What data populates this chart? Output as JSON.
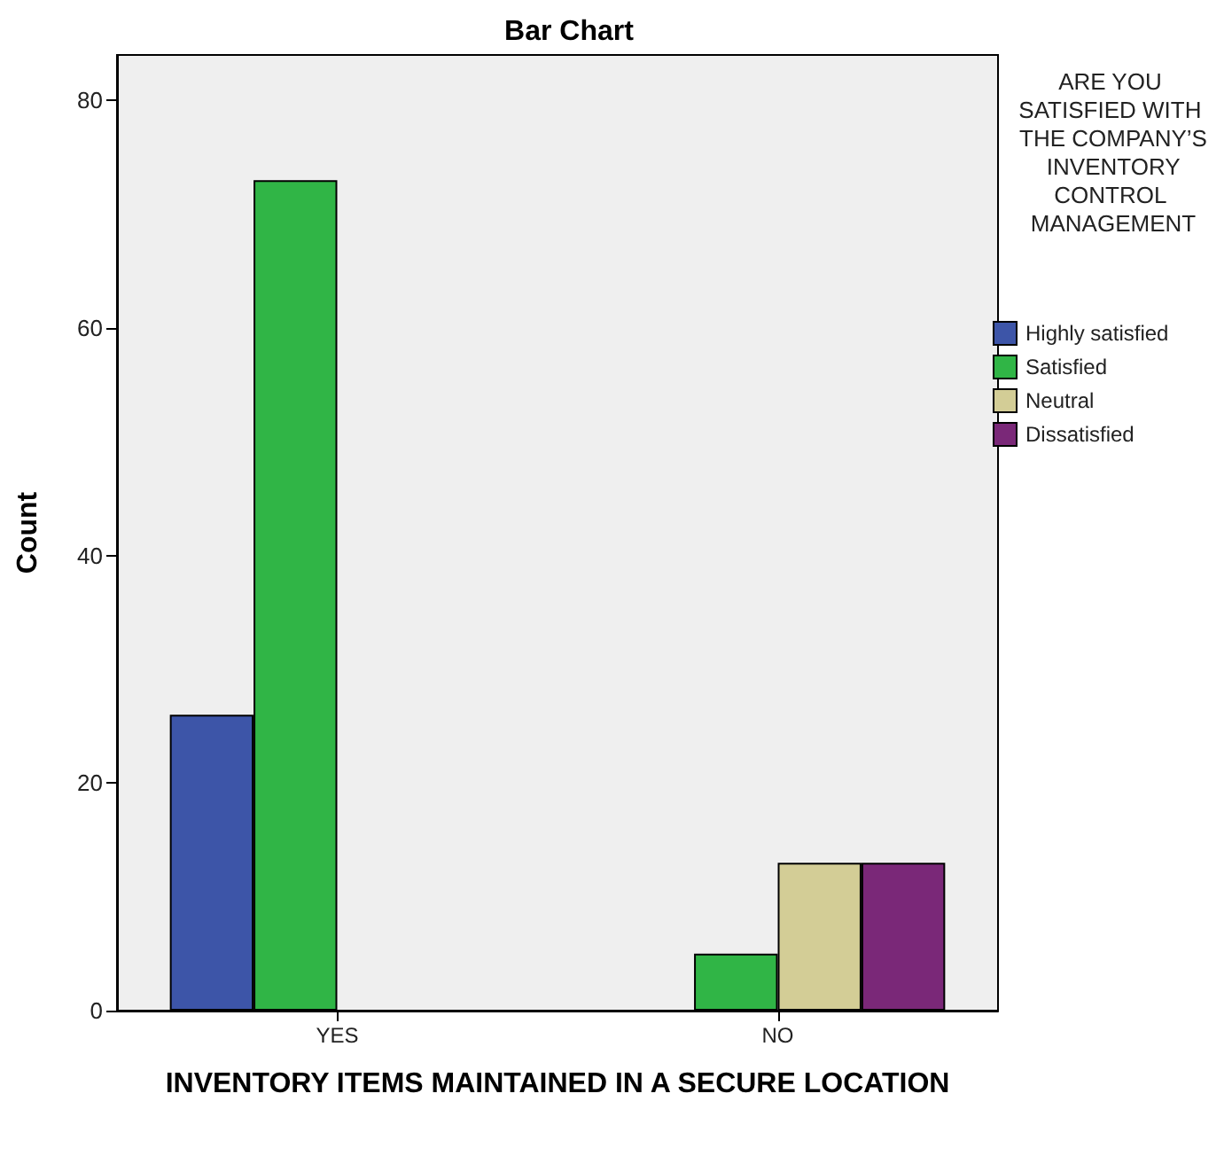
{
  "chart_data": {
    "type": "bar",
    "title": "Bar Chart",
    "xlabel": "INVENTORY ITEMS MAINTAINED IN A SECURE LOCATION",
    "ylabel": "Count",
    "legend_title": "ARE YOU SATISFIED WITH THE COMPANY’S INVENTORY CONTROL MANAGEMENT",
    "categories": [
      "YES",
      "NO"
    ],
    "series": [
      {
        "name": "Highly satisfied",
        "color": "#3d55a8",
        "values": [
          26,
          null
        ]
      },
      {
        "name": "Satisfied",
        "color": "#30b546",
        "values": [
          73,
          5
        ]
      },
      {
        "name": "Neutral",
        "color": "#d3cd96",
        "values": [
          null,
          13
        ]
      },
      {
        "name": "Dissatisfied",
        "color": "#7a2878",
        "values": [
          null,
          13
        ]
      }
    ],
    "ylim": [
      0,
      84
    ],
    "yticks": [
      0,
      20,
      40,
      60,
      80
    ],
    "grid": false,
    "legend": "right"
  }
}
